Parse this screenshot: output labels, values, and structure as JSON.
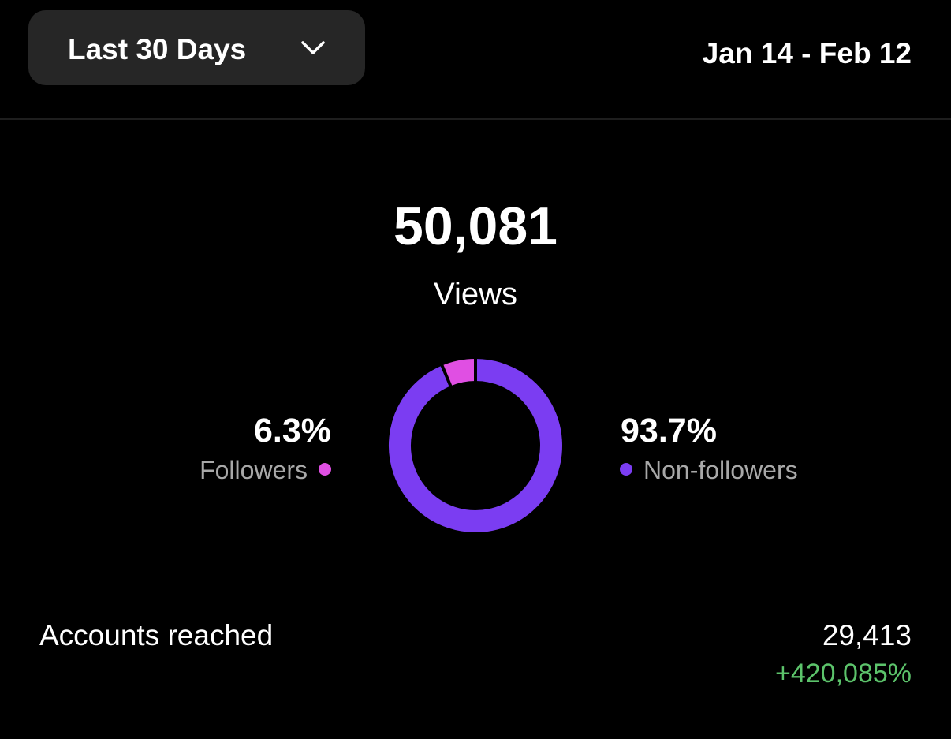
{
  "header": {
    "range_button": "Last 30 Days",
    "date_range": "Jan 14 - Feb 12"
  },
  "summary": {
    "total": "50,081",
    "total_label": "Views"
  },
  "chart_data": {
    "type": "donut",
    "categories": [
      "Followers",
      "Non-followers"
    ],
    "values": [
      6.3,
      93.7
    ],
    "value_labels": [
      "6.3%",
      "93.7%"
    ],
    "colors": [
      "#e04fe3",
      "#7b3df2"
    ]
  },
  "accounts_reached": {
    "label": "Accounts reached",
    "value": "29,413",
    "change": "+420,085%"
  }
}
